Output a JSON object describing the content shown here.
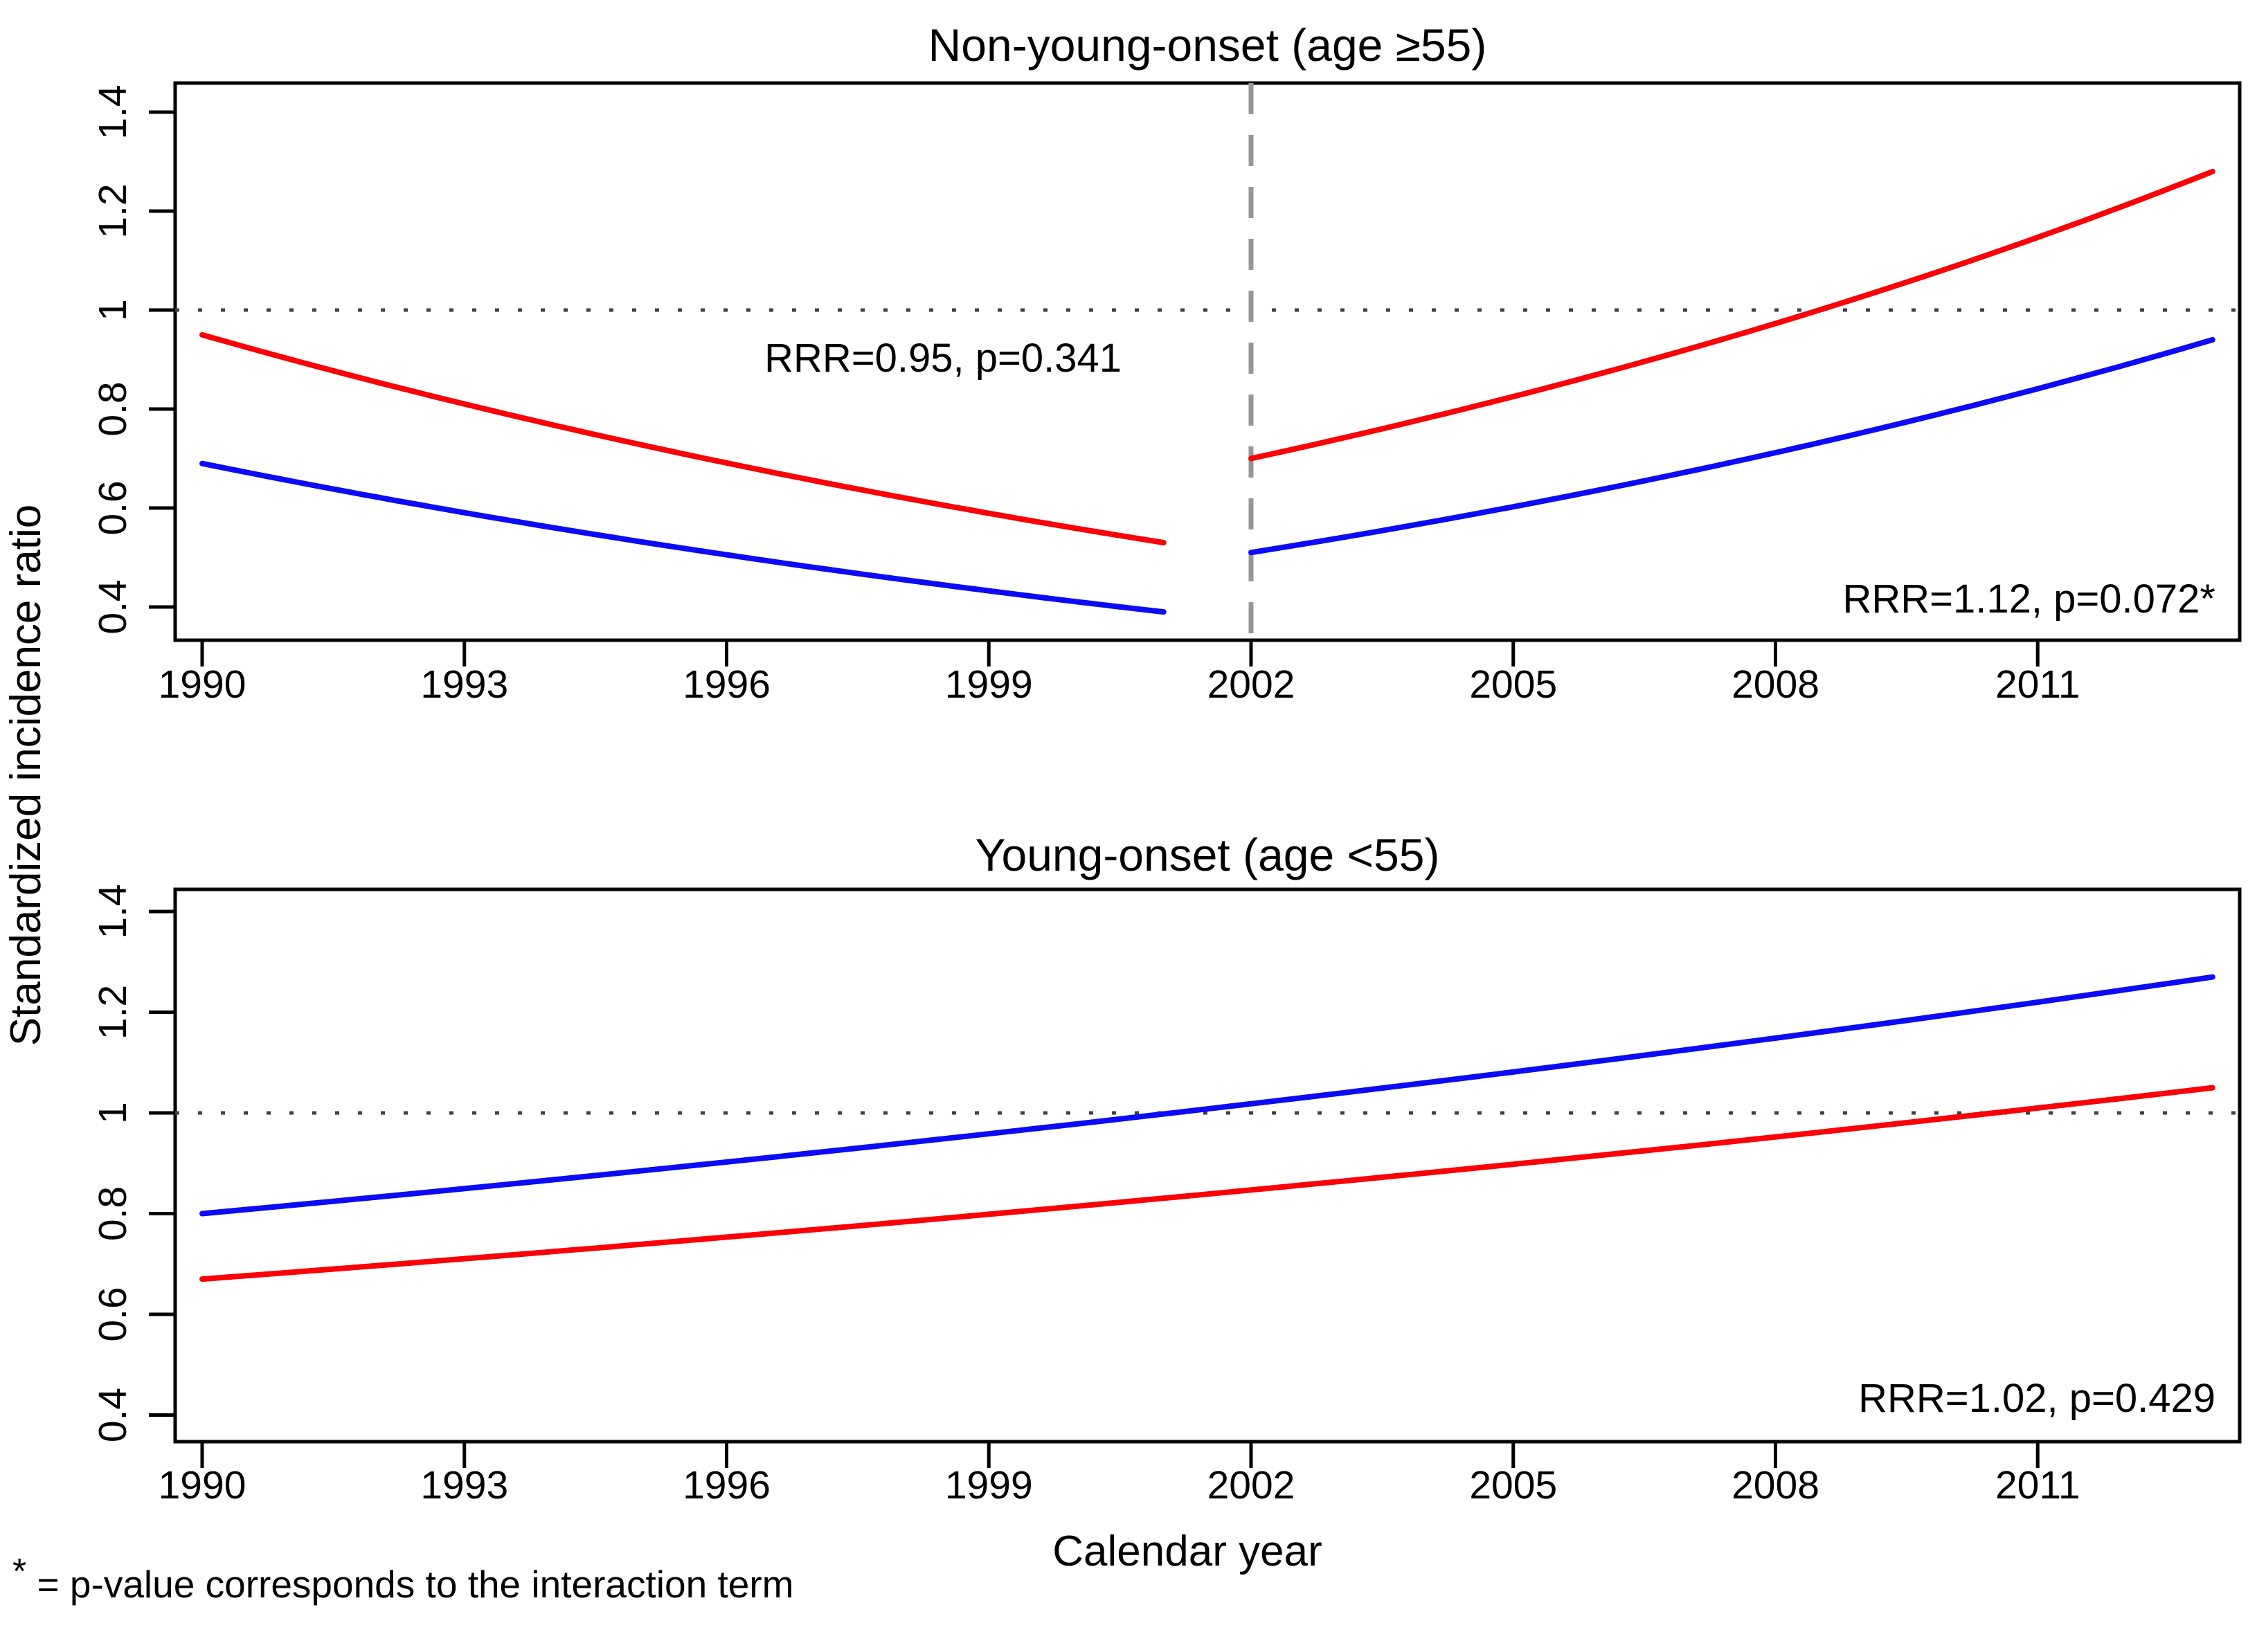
{
  "figure": {
    "y_axis_label": "Standardized incidence ratio",
    "x_axis_label": "Calendar year",
    "footnote_star": "*",
    "footnote_text": " = p-value corresponds to the interaction term",
    "colors": {
      "series_red": "#fb0006",
      "series_blue": "#0b0bf6",
      "reference_dotted": "#404040",
      "break_dashed": "#979797",
      "axis": "#000000"
    }
  },
  "chart_data": [
    {
      "type": "line",
      "title": "Non-young-onset (age ≥55)",
      "xlabel": "Calendar year",
      "ylabel": "Standardized incidence ratio",
      "x_ticks": [
        1990,
        1993,
        1996,
        1999,
        2002,
        2005,
        2008,
        2011
      ],
      "y_ticks": [
        1.4,
        1.2,
        1,
        0.8,
        0.6,
        0.4
      ],
      "xlim": [
        1989.7,
        2013.3
      ],
      "ylim": [
        0.33,
        1.46
      ],
      "grid": false,
      "reference_line_y": 1,
      "break_line_x": 2002,
      "interpolation": "exponential",
      "annotations": [
        {
          "text": "RRR=0.95, p=0.341"
        },
        {
          "text": "RRR=1.12, p=0.072*"
        }
      ],
      "series": [
        {
          "name": "red-series",
          "color_key": "series_red",
          "segments": [
            {
              "x": [
                1990,
                2001
              ],
              "y": [
                0.95,
                0.53
              ]
            },
            {
              "x": [
                2002,
                2013
              ],
              "y": [
                0.7,
                1.28
              ]
            }
          ]
        },
        {
          "name": "blue-series",
          "color_key": "series_blue",
          "segments": [
            {
              "x": [
                1990,
                2001
              ],
              "y": [
                0.69,
                0.39
              ]
            },
            {
              "x": [
                2002,
                2013
              ],
              "y": [
                0.51,
                0.94
              ]
            }
          ]
        }
      ]
    },
    {
      "type": "line",
      "title": "Young-onset (age <55)",
      "xlabel": "Calendar year",
      "ylabel": "Standardized incidence ratio",
      "x_ticks": [
        1990,
        1993,
        1996,
        1999,
        2002,
        2005,
        2008,
        2011
      ],
      "y_ticks": [
        1.4,
        1.2,
        1,
        0.8,
        0.6,
        0.4
      ],
      "xlim": [
        1989.7,
        2013.3
      ],
      "ylim": [
        0.33,
        1.46
      ],
      "grid": false,
      "reference_line_y": 1,
      "break_line_x": null,
      "interpolation": "exponential",
      "annotations": [
        {
          "text": "RRR=1.02, p=0.429"
        }
      ],
      "series": [
        {
          "name": "blue-series",
          "color_key": "series_blue",
          "segments": [
            {
              "x": [
                1990,
                2013
              ],
              "y": [
                0.8,
                1.27
              ]
            }
          ]
        },
        {
          "name": "red-series",
          "color_key": "series_red",
          "segments": [
            {
              "x": [
                1990,
                2013
              ],
              "y": [
                0.67,
                1.05
              ]
            }
          ]
        }
      ]
    }
  ]
}
